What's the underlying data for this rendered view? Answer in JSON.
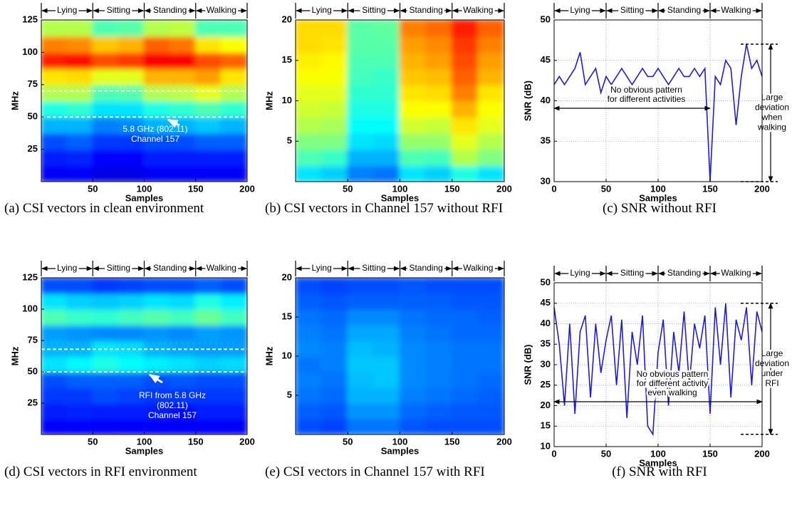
{
  "chart_data": [
    {
      "type": "heatmap",
      "caption": "(a) CSI vectors in clean environment",
      "xlabel": "Samples",
      "ylabel": "MHz",
      "activities": [
        "Lying",
        "Sitting",
        "Standing",
        "Walking"
      ],
      "activity_bounds": [
        0,
        50,
        100,
        150,
        200
      ],
      "xlim": [
        0,
        200
      ],
      "ylim": [
        0,
        125
      ],
      "xticks": [
        50,
        100,
        150,
        200
      ],
      "yticks": [
        25,
        50,
        75,
        100,
        125
      ],
      "x_bins": [
        0,
        25,
        50,
        75,
        100,
        125,
        150,
        175,
        200
      ],
      "y_bins": [
        0,
        12.5,
        25,
        37.5,
        50,
        62.5,
        75,
        87.5,
        100,
        112.5,
        125
      ],
      "z": [
        [
          0.12,
          0.15,
          0.2,
          0.3,
          0.4,
          0.55,
          0.65,
          0.85,
          0.75,
          0.55
        ],
        [
          0.12,
          0.16,
          0.22,
          0.3,
          0.42,
          0.55,
          0.66,
          0.86,
          0.74,
          0.55
        ],
        [
          0.1,
          0.13,
          0.18,
          0.25,
          0.35,
          0.45,
          0.6,
          0.8,
          0.68,
          0.45
        ],
        [
          0.1,
          0.13,
          0.18,
          0.26,
          0.35,
          0.46,
          0.6,
          0.82,
          0.7,
          0.46
        ],
        [
          0.12,
          0.15,
          0.2,
          0.3,
          0.4,
          0.55,
          0.7,
          0.88,
          0.78,
          0.55
        ],
        [
          0.12,
          0.15,
          0.2,
          0.3,
          0.42,
          0.56,
          0.7,
          0.87,
          0.76,
          0.56
        ],
        [
          0.12,
          0.15,
          0.22,
          0.32,
          0.45,
          0.6,
          0.72,
          0.8,
          0.65,
          0.45
        ],
        [
          0.12,
          0.15,
          0.22,
          0.3,
          0.42,
          0.55,
          0.65,
          0.78,
          0.62,
          0.45
        ]
      ],
      "hlines": [
        50,
        70
      ],
      "annotation": [
        "5.8 GHz (802.11)",
        "Channel 157"
      ]
    },
    {
      "type": "heatmap",
      "caption": "(b) CSI vectors in Channel 157 without RFI",
      "xlabel": "Samples",
      "ylabel": "MHz",
      "activities": [
        "Lying",
        "Sitting",
        "Standing",
        "Walking"
      ],
      "activity_bounds": [
        0,
        50,
        100,
        150,
        200
      ],
      "xlim": [
        0,
        200
      ],
      "ylim": [
        0,
        20
      ],
      "xticks": [
        50,
        100,
        150,
        200
      ],
      "yticks": [
        5,
        10,
        15,
        20
      ],
      "x_bins": [
        0,
        25,
        50,
        75,
        100,
        125,
        150,
        175,
        200
      ],
      "y_bins": [
        0,
        2,
        4,
        6,
        8,
        10,
        12,
        14,
        16,
        18,
        20
      ],
      "z": [
        [
          0.35,
          0.45,
          0.5,
          0.55,
          0.58,
          0.6,
          0.62,
          0.64,
          0.66,
          0.66
        ],
        [
          0.33,
          0.43,
          0.5,
          0.54,
          0.57,
          0.6,
          0.62,
          0.63,
          0.65,
          0.66
        ],
        [
          0.25,
          0.3,
          0.35,
          0.38,
          0.4,
          0.42,
          0.44,
          0.45,
          0.46,
          0.46
        ],
        [
          0.24,
          0.3,
          0.34,
          0.38,
          0.4,
          0.42,
          0.43,
          0.45,
          0.46,
          0.47
        ],
        [
          0.35,
          0.45,
          0.52,
          0.58,
          0.62,
          0.65,
          0.68,
          0.7,
          0.72,
          0.75
        ],
        [
          0.33,
          0.44,
          0.52,
          0.57,
          0.62,
          0.66,
          0.69,
          0.72,
          0.74,
          0.77
        ],
        [
          0.4,
          0.55,
          0.6,
          0.65,
          0.7,
          0.75,
          0.78,
          0.8,
          0.82,
          0.85
        ],
        [
          0.35,
          0.5,
          0.55,
          0.6,
          0.62,
          0.65,
          0.7,
          0.72,
          0.75,
          0.78
        ]
      ]
    },
    {
      "type": "line",
      "caption": "(c) SNR without RFI",
      "xlabel": "Samples",
      "ylabel": "SNR (dB)",
      "activities": [
        "Lying",
        "Sitting",
        "Standing",
        "Walking"
      ],
      "activity_bounds": [
        0,
        50,
        100,
        150,
        200
      ],
      "xlim": [
        0,
        200
      ],
      "ylim": [
        30,
        50
      ],
      "xticks": [
        0,
        50,
        100,
        150,
        200
      ],
      "yticks": [
        30,
        35,
        40,
        45,
        50
      ],
      "grid": true,
      "x": [
        0,
        5,
        10,
        15,
        20,
        25,
        30,
        35,
        40,
        45,
        50,
        55,
        60,
        65,
        70,
        75,
        80,
        85,
        90,
        95,
        100,
        105,
        110,
        115,
        120,
        125,
        130,
        135,
        140,
        145,
        150,
        155,
        160,
        165,
        170,
        175,
        180,
        185,
        190,
        195,
        200
      ],
      "values": [
        42,
        43,
        42,
        43,
        44,
        46,
        42,
        43,
        44,
        41,
        43,
        42,
        43,
        44,
        43,
        42,
        43,
        44,
        43,
        43,
        44,
        43,
        42,
        43,
        44,
        43,
        43,
        44,
        43,
        44,
        30,
        43,
        42,
        45,
        44,
        37,
        43,
        47,
        44,
        45,
        43
      ],
      "color": "#1c1cd8",
      "annotation_pattern": [
        "No obvious pattern",
        "for different activities"
      ],
      "annotation_deviation": [
        "Large",
        "deviation",
        "when",
        "walking"
      ]
    },
    {
      "type": "heatmap",
      "caption": "(d) CSI vectors in RFI environment",
      "xlabel": "Samples",
      "ylabel": "MHz",
      "activities": [
        "Lying",
        "Sitting",
        "Standing",
        "Walking"
      ],
      "activity_bounds": [
        0,
        50,
        100,
        150,
        200
      ],
      "xlim": [
        0,
        200
      ],
      "ylim": [
        0,
        125
      ],
      "xticks": [
        50,
        100,
        150,
        200
      ],
      "yticks": [
        25,
        50,
        75,
        100,
        125
      ],
      "x_bins": [
        0,
        25,
        50,
        75,
        100,
        125,
        150,
        175,
        200
      ],
      "y_bins": [
        0,
        12.5,
        25,
        37.5,
        50,
        62.5,
        75,
        87.5,
        100,
        112.5,
        125
      ],
      "z": [
        [
          0.12,
          0.15,
          0.18,
          0.2,
          0.35,
          0.3,
          0.28,
          0.45,
          0.35,
          0.2
        ],
        [
          0.13,
          0.16,
          0.18,
          0.22,
          0.37,
          0.3,
          0.27,
          0.43,
          0.33,
          0.2
        ],
        [
          0.12,
          0.15,
          0.2,
          0.22,
          0.4,
          0.35,
          0.26,
          0.42,
          0.32,
          0.18
        ],
        [
          0.13,
          0.15,
          0.19,
          0.22,
          0.38,
          0.34,
          0.26,
          0.44,
          0.33,
          0.19
        ],
        [
          0.12,
          0.15,
          0.18,
          0.2,
          0.36,
          0.3,
          0.27,
          0.46,
          0.35,
          0.2
        ],
        [
          0.12,
          0.14,
          0.18,
          0.21,
          0.35,
          0.29,
          0.26,
          0.44,
          0.34,
          0.2
        ],
        [
          0.12,
          0.15,
          0.18,
          0.2,
          0.33,
          0.28,
          0.28,
          0.48,
          0.4,
          0.22
        ],
        [
          0.12,
          0.15,
          0.18,
          0.2,
          0.34,
          0.28,
          0.27,
          0.44,
          0.36,
          0.2
        ]
      ],
      "hlines": [
        50,
        68
      ],
      "annotation": [
        "RFI from 5.8 GHz",
        "(802.11)",
        "Channel 157"
      ]
    },
    {
      "type": "heatmap",
      "caption": "(e) CSI vectors in Channel 157 with RFI",
      "xlabel": "Samples",
      "ylabel": "MHz",
      "activities": [
        "Lying",
        "Sitting",
        "Standing",
        "Walking"
      ],
      "activity_bounds": [
        0,
        50,
        100,
        150,
        200
      ],
      "xlim": [
        0,
        200
      ],
      "ylim": [
        0,
        20
      ],
      "xticks": [
        50,
        100,
        150,
        200
      ],
      "yticks": [
        5,
        10,
        15,
        20
      ],
      "x_bins": [
        0,
        25,
        50,
        75,
        100,
        125,
        150,
        175,
        200
      ],
      "y_bins": [
        0,
        2,
        4,
        6,
        8,
        10,
        12,
        14,
        16,
        18,
        20
      ],
      "z": [
        [
          0.2,
          0.22,
          0.24,
          0.25,
          0.24,
          0.26,
          0.25,
          0.24,
          0.22,
          0.2
        ],
        [
          0.19,
          0.21,
          0.23,
          0.24,
          0.25,
          0.25,
          0.24,
          0.23,
          0.21,
          0.19
        ],
        [
          0.24,
          0.27,
          0.3,
          0.31,
          0.32,
          0.31,
          0.29,
          0.26,
          0.22,
          0.2
        ],
        [
          0.24,
          0.27,
          0.3,
          0.32,
          0.32,
          0.3,
          0.29,
          0.26,
          0.22,
          0.2
        ],
        [
          0.21,
          0.23,
          0.25,
          0.26,
          0.26,
          0.26,
          0.25,
          0.24,
          0.22,
          0.21
        ],
        [
          0.2,
          0.22,
          0.24,
          0.25,
          0.25,
          0.25,
          0.24,
          0.23,
          0.22,
          0.2
        ],
        [
          0.2,
          0.21,
          0.23,
          0.24,
          0.24,
          0.24,
          0.23,
          0.23,
          0.21,
          0.2
        ],
        [
          0.2,
          0.21,
          0.22,
          0.23,
          0.24,
          0.24,
          0.23,
          0.22,
          0.21,
          0.2
        ]
      ]
    },
    {
      "type": "line",
      "caption": "(f) SNR with RFI",
      "xlabel": "Samples",
      "ylabel": "SNR (dB)",
      "activities": [
        "Lying",
        "Sitting",
        "Standing",
        "Walking"
      ],
      "activity_bounds": [
        0,
        50,
        100,
        150,
        200
      ],
      "xlim": [
        0,
        200
      ],
      "ylim": [
        10,
        50
      ],
      "xticks": [
        0,
        50,
        100,
        150,
        200
      ],
      "yticks": [
        10,
        15,
        20,
        25,
        30,
        35,
        40,
        45,
        50
      ],
      "grid": true,
      "x": [
        0,
        5,
        10,
        15,
        20,
        25,
        30,
        35,
        40,
        45,
        50,
        55,
        60,
        65,
        70,
        75,
        80,
        85,
        90,
        95,
        100,
        105,
        110,
        115,
        120,
        125,
        130,
        135,
        140,
        145,
        150,
        155,
        160,
        165,
        170,
        175,
        180,
        185,
        190,
        195,
        200
      ],
      "values": [
        44,
        35,
        20,
        40,
        18,
        38,
        42,
        22,
        40,
        28,
        36,
        42,
        25,
        41,
        17,
        38,
        30,
        42,
        15,
        13,
        33,
        41,
        20,
        38,
        28,
        43,
        25,
        40,
        34,
        42,
        18,
        44,
        30,
        45,
        22,
        41,
        36,
        44,
        25,
        43,
        38
      ],
      "color": "#1c1cd8",
      "annotation_pattern": [
        "No obvious pattern",
        "for different activity",
        "even walking"
      ],
      "annotation_deviation": [
        "Large",
        "deviation",
        "under",
        "RFI"
      ]
    }
  ]
}
